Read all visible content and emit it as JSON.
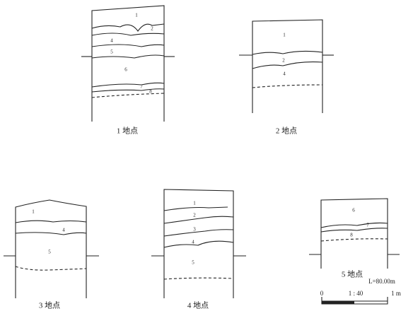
{
  "profiles": [
    {
      "label": "1 地点",
      "layers": [
        "1",
        "2",
        "4",
        "5",
        "6",
        "7",
        "8"
      ]
    },
    {
      "label": "2 地点",
      "layers": [
        "1",
        "2",
        "4"
      ]
    },
    {
      "label": "3 地点",
      "layers": [
        "1",
        "4",
        "5"
      ]
    },
    {
      "label": "4 地点",
      "layers": [
        "1",
        "2",
        "3",
        "4",
        "5"
      ]
    },
    {
      "label": "5 地点",
      "layers": [
        "6",
        "7",
        "8"
      ]
    }
  ],
  "elevation": "L=80.00m",
  "scale": {
    "start": "0",
    "ratio": "1 : 40",
    "end": "1 m"
  }
}
